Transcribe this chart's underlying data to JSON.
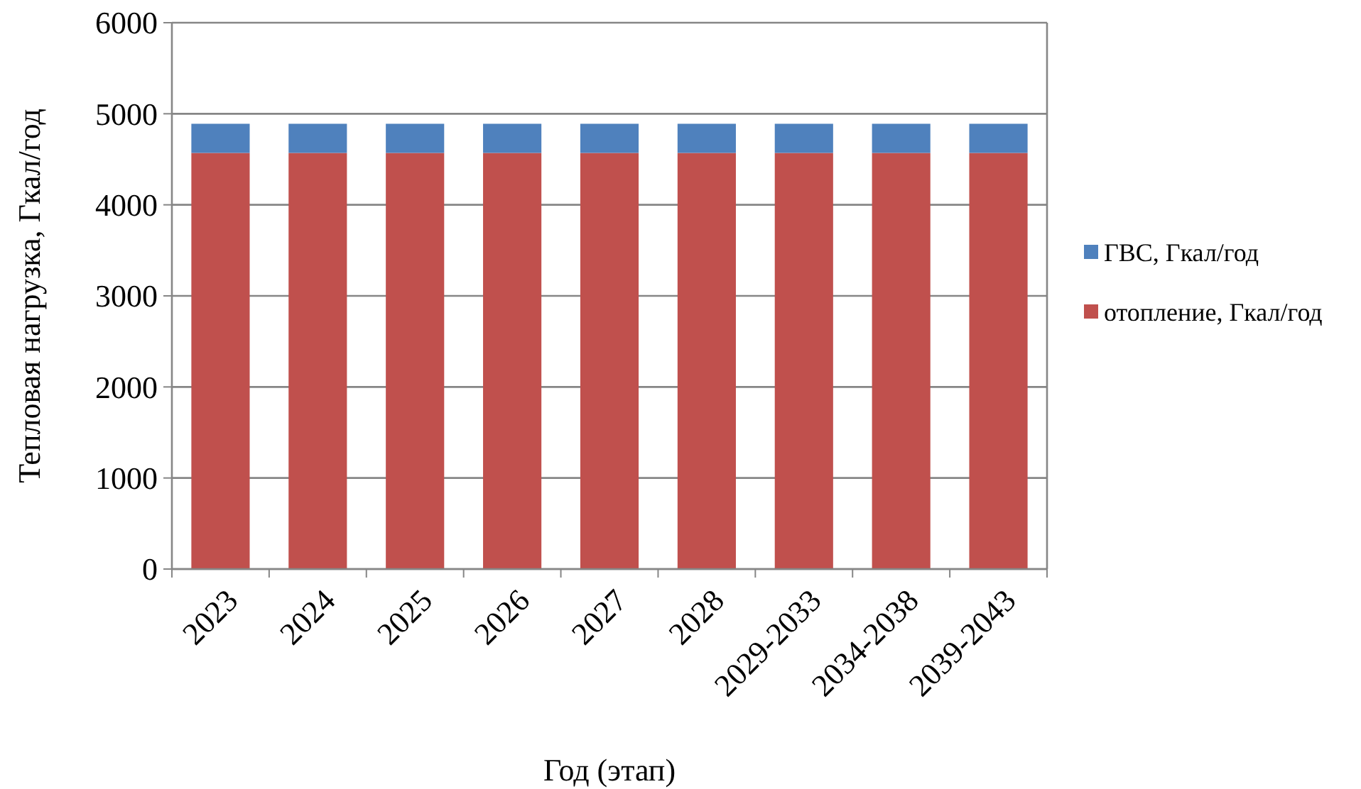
{
  "chart_data": {
    "type": "bar",
    "stacked": true,
    "xlabel": "Год (этап)",
    "ylabel": "Тепловая нагрузка, Гкал/год",
    "categories": [
      "2023",
      "2024",
      "2025",
      "2026",
      "2027",
      "2028",
      "2029-2033",
      "2034-2038",
      "2039-2043"
    ],
    "series": [
      {
        "name": "отопление, Гкал/год",
        "color": "#c0504d",
        "values": [
          4570,
          4570,
          4570,
          4570,
          4570,
          4570,
          4570,
          4570,
          4570
        ]
      },
      {
        "name": "ГВС, Гкал/год",
        "color": "#4f81bd",
        "values": [
          320,
          320,
          320,
          320,
          320,
          320,
          320,
          320,
          320
        ]
      }
    ],
    "ylim": [
      0,
      6000
    ],
    "yticks": [
      0,
      1000,
      2000,
      3000,
      4000,
      5000,
      6000
    ],
    "grid": "y",
    "legend": "right"
  }
}
